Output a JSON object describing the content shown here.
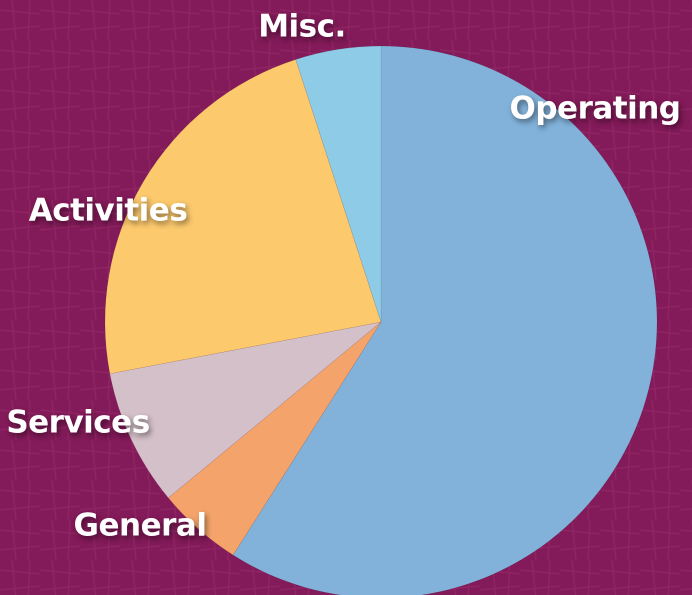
{
  "chart_data": {
    "type": "pie",
    "categories": [
      "Operating",
      "General",
      "Services",
      "Activities",
      "Misc."
    ],
    "values": [
      59,
      5,
      8,
      23,
      5
    ],
    "colors": [
      "#82b2da",
      "#f4a46a",
      "#d4c0c9",
      "#fcc96d",
      "#8ecbe6"
    ]
  }
}
